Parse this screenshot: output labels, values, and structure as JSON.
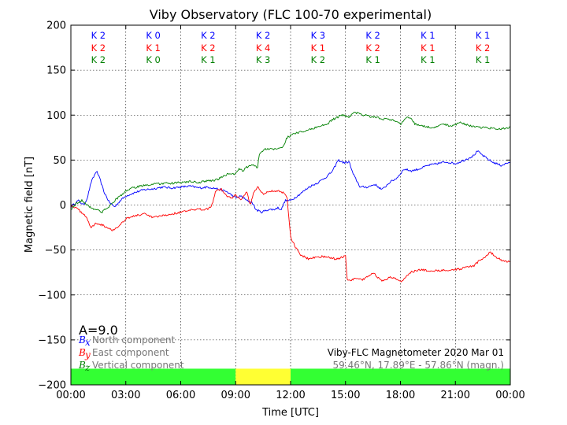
{
  "chart_data": {
    "type": "line",
    "title": "Viby Observatory (FLC 100-70 experimental)",
    "xlabel": "Time [UTC]",
    "ylabel": "Magnetic field [nT]",
    "ylim": [
      -200,
      200
    ],
    "xlim": [
      0,
      24
    ],
    "x_tick_labels": [
      "00:00",
      "03:00",
      "06:00",
      "09:00",
      "12:00",
      "15:00",
      "18:00",
      "21:00",
      "00:00"
    ],
    "y_ticks": [
      -200,
      -150,
      -100,
      -50,
      0,
      50,
      100,
      150,
      200
    ],
    "grid": true,
    "series": [
      {
        "name": "North component",
        "symbol": "B",
        "subscript": "x",
        "color": "#0000ff",
        "points": [
          [
            0,
            -2
          ],
          [
            0.4,
            5
          ],
          [
            0.7,
            0
          ],
          [
            0.9,
            8
          ],
          [
            1.1,
            25
          ],
          [
            1.4,
            38
          ],
          [
            1.6,
            28
          ],
          [
            1.8,
            15
          ],
          [
            2.1,
            3
          ],
          [
            2.4,
            -2
          ],
          [
            2.7,
            5
          ],
          [
            3,
            10
          ],
          [
            3.5,
            14
          ],
          [
            4,
            17
          ],
          [
            4.5,
            18
          ],
          [
            5,
            20
          ],
          [
            5.5,
            19
          ],
          [
            6,
            20
          ],
          [
            6.5,
            21
          ],
          [
            7,
            19
          ],
          [
            7.5,
            20
          ],
          [
            8,
            18
          ],
          [
            8.5,
            15
          ],
          [
            9,
            8
          ],
          [
            9.3,
            10
          ],
          [
            9.6,
            5
          ],
          [
            9.9,
            3
          ],
          [
            10.1,
            -5
          ],
          [
            10.4,
            -8
          ],
          [
            10.8,
            -5
          ],
          [
            11.1,
            -5
          ],
          [
            11.3,
            -3
          ],
          [
            11.5,
            -5
          ],
          [
            11.7,
            5
          ],
          [
            12,
            5
          ],
          [
            12.5,
            12
          ],
          [
            13,
            20
          ],
          [
            13.5,
            25
          ],
          [
            14,
            32
          ],
          [
            14.3,
            38
          ],
          [
            14.6,
            50
          ],
          [
            14.9,
            47
          ],
          [
            15.2,
            48
          ],
          [
            15.4,
            35
          ],
          [
            15.8,
            20
          ],
          [
            16.2,
            20
          ],
          [
            16.6,
            23
          ],
          [
            17,
            17
          ],
          [
            17.4,
            25
          ],
          [
            17.8,
            30
          ],
          [
            18.2,
            40
          ],
          [
            18.6,
            38
          ],
          [
            19,
            40
          ],
          [
            19.5,
            44
          ],
          [
            20,
            46
          ],
          [
            20.5,
            48
          ],
          [
            21,
            46
          ],
          [
            21.5,
            50
          ],
          [
            22,
            55
          ],
          [
            22.2,
            60
          ],
          [
            22.5,
            55
          ],
          [
            23,
            48
          ],
          [
            23.5,
            44
          ],
          [
            24,
            48
          ]
        ]
      },
      {
        "name": "East component",
        "symbol": "B",
        "subscript": "y",
        "color": "#ff0000",
        "points": [
          [
            0,
            0
          ],
          [
            0.4,
            -5
          ],
          [
            0.8,
            -12
          ],
          [
            1.1,
            -25
          ],
          [
            1.4,
            -20
          ],
          [
            1.7,
            -22
          ],
          [
            2,
            -25
          ],
          [
            2.3,
            -28
          ],
          [
            2.7,
            -22
          ],
          [
            3,
            -15
          ],
          [
            3.5,
            -12
          ],
          [
            4,
            -10
          ],
          [
            4.5,
            -14
          ],
          [
            5,
            -12
          ],
          [
            5.5,
            -10
          ],
          [
            6,
            -8
          ],
          [
            6.5,
            -6
          ],
          [
            7,
            -5
          ],
          [
            7.5,
            -4
          ],
          [
            7.7,
            0
          ],
          [
            7.9,
            15
          ],
          [
            8.2,
            18
          ],
          [
            8.5,
            10
          ],
          [
            8.8,
            8
          ],
          [
            9,
            12
          ],
          [
            9.3,
            5
          ],
          [
            9.6,
            15
          ],
          [
            9.8,
            0
          ],
          [
            10,
            15
          ],
          [
            10.2,
            20
          ],
          [
            10.5,
            12
          ],
          [
            10.8,
            15
          ],
          [
            11.2,
            16
          ],
          [
            11.5,
            15
          ],
          [
            11.8,
            10
          ],
          [
            12,
            -35
          ],
          [
            12.1,
            -40
          ],
          [
            12.3,
            -48
          ],
          [
            12.5,
            -55
          ],
          [
            13,
            -60
          ],
          [
            13.5,
            -57
          ],
          [
            14,
            -58
          ],
          [
            14.5,
            -60
          ],
          [
            15,
            -57
          ],
          [
            15.1,
            -85
          ],
          [
            15.5,
            -82
          ],
          [
            16,
            -83
          ],
          [
            16.5,
            -75
          ],
          [
            17,
            -85
          ],
          [
            17.5,
            -80
          ],
          [
            18,
            -85
          ],
          [
            18.2,
            -82
          ],
          [
            18.5,
            -75
          ],
          [
            19,
            -72
          ],
          [
            19.5,
            -73
          ],
          [
            20,
            -73
          ],
          [
            20.5,
            -72
          ],
          [
            21,
            -72
          ],
          [
            21.5,
            -70
          ],
          [
            22,
            -68
          ],
          [
            22.3,
            -62
          ],
          [
            22.6,
            -58
          ],
          [
            22.9,
            -52
          ],
          [
            23.2,
            -58
          ],
          [
            23.6,
            -62
          ],
          [
            24,
            -63
          ]
        ]
      },
      {
        "name": "Vertical component",
        "symbol": "B",
        "subscript": "z",
        "color": "#008000",
        "points": [
          [
            0,
            -5
          ],
          [
            0.3,
            2
          ],
          [
            0.6,
            5
          ],
          [
            0.9,
            0
          ],
          [
            1.1,
            -3
          ],
          [
            1.4,
            -5
          ],
          [
            1.7,
            -8
          ],
          [
            2,
            -3
          ],
          [
            2.4,
            5
          ],
          [
            2.8,
            12
          ],
          [
            3.2,
            18
          ],
          [
            3.6,
            20
          ],
          [
            4,
            22
          ],
          [
            4.5,
            23
          ],
          [
            5,
            24
          ],
          [
            5.5,
            24
          ],
          [
            6,
            25
          ],
          [
            6.5,
            26
          ],
          [
            7,
            25
          ],
          [
            7.5,
            27
          ],
          [
            8,
            28
          ],
          [
            8.5,
            34
          ],
          [
            9,
            35
          ],
          [
            9.2,
            40
          ],
          [
            9.4,
            38
          ],
          [
            9.6,
            42
          ],
          [
            9.8,
            45
          ],
          [
            10.2,
            42
          ],
          [
            10.3,
            58
          ],
          [
            10.6,
            62
          ],
          [
            11,
            62
          ],
          [
            11.3,
            63
          ],
          [
            11.6,
            65
          ],
          [
            11.8,
            75
          ],
          [
            12.3,
            80
          ],
          [
            12.8,
            82
          ],
          [
            13.2,
            85
          ],
          [
            13.6,
            88
          ],
          [
            14,
            90
          ],
          [
            14.3,
            95
          ],
          [
            14.8,
            100
          ],
          [
            15.2,
            98
          ],
          [
            15.5,
            103
          ],
          [
            16,
            100
          ],
          [
            16.5,
            98
          ],
          [
            17,
            96
          ],
          [
            17.5,
            95
          ],
          [
            18,
            90
          ],
          [
            18.3,
            96
          ],
          [
            18.5,
            98
          ],
          [
            18.8,
            90
          ],
          [
            19.3,
            88
          ],
          [
            19.8,
            85
          ],
          [
            20.3,
            90
          ],
          [
            20.8,
            88
          ],
          [
            21.3,
            92
          ],
          [
            21.8,
            88
          ],
          [
            22.3,
            86
          ],
          [
            22.8,
            86
          ],
          [
            23.3,
            84
          ],
          [
            23.7,
            85
          ],
          [
            24,
            87
          ]
        ]
      }
    ],
    "k_indices": {
      "x": [
        "K 2",
        "K 0",
        "K 2",
        "K 2",
        "K 3",
        "K 2",
        "K 1",
        "K 1"
      ],
      "y": [
        "K 2",
        "K 1",
        "K 2",
        "K 4",
        "K 1",
        "K 2",
        "K 1",
        "K 2"
      ],
      "z": [
        "K 2",
        "K 0",
        "K 1",
        "K 3",
        "K 2",
        "K 1",
        "K 1",
        "K 1"
      ]
    },
    "activity_bar": [
      {
        "start": 0,
        "end": 9,
        "color": "#33ff33"
      },
      {
        "start": 9,
        "end": 12,
        "color": "#ffff33"
      },
      {
        "start": 12,
        "end": 24,
        "color": "#33ff33"
      }
    ],
    "a_index": "A=9.0",
    "info_line1": "Viby-FLC Magnetometer 2020 Mar 01",
    "info_line2": "59.46°N, 17.89°E - 57.86°N (magn.)",
    "legend_placement": "bottom-left"
  }
}
